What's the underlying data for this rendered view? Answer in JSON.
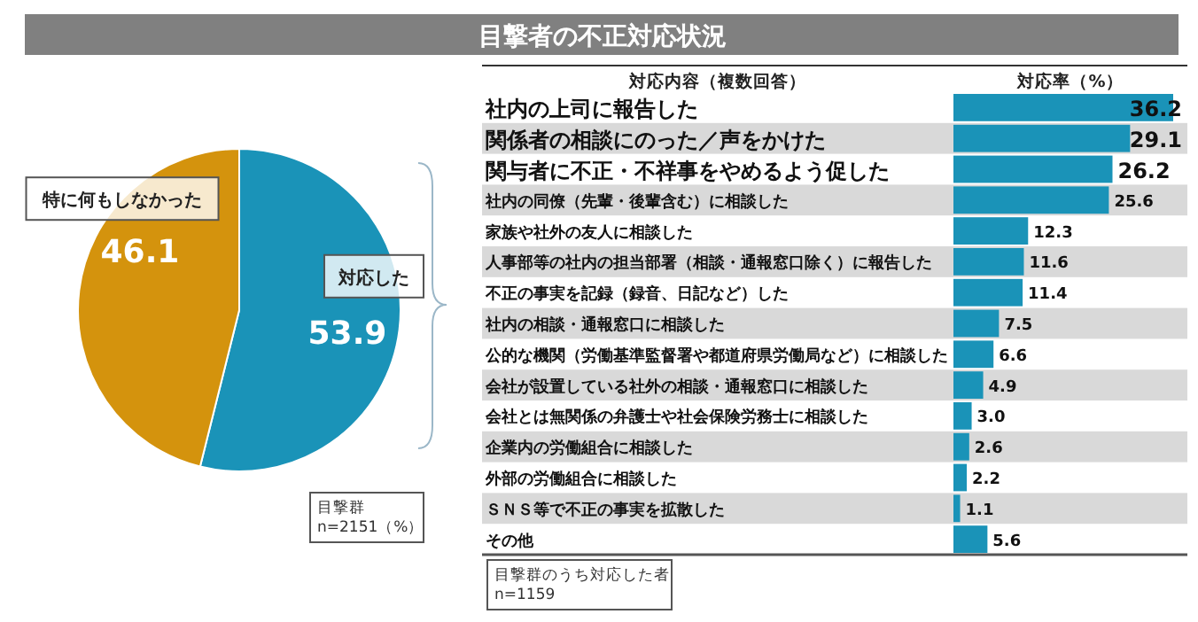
{
  "chart_data": [
    {
      "type": "pie",
      "title": "目撃者の不正対応状況",
      "categories": [
        "対応した",
        "特に何もしなかった"
      ],
      "values": [
        53.9,
        46.1
      ],
      "colors": [
        "#1a93b8",
        "#d4930d"
      ],
      "data_labels": true,
      "annotations": [
        "目撃群\nn=2151（%）"
      ]
    },
    {
      "type": "bar",
      "orientation": "horizontal",
      "ylabel": "対応内容（複数回答）",
      "xlabel": "対応率（%）",
      "value_labels": [
        "36.2",
        "29.1",
        "26.2",
        "25.6",
        "12.3",
        "11.6",
        "11.4",
        "7.5",
        "6.6",
        "4.9",
        "3.0",
        "2.6",
        "2.2",
        "1.1",
        "5.6"
      ],
      "categories": [
        "社内の上司に報告した",
        "関係者の相談にのった／声をかけた",
        "関与者に不正・不祥事をやめるよう促した",
        "社内の同僚（先輩・後輩含む）に相談した",
        "家族や社外の友人に相談した",
        "人事部等の社内の担当部署（相談・通報窓口除く）に報告した",
        "不正の事実を記録（録音、日記など）した",
        "社内の相談・通報窓口に相談した",
        "公的な機関（労働基準監督署や都道府県労働局など）に相談した",
        "会社が設置している社外の相談・通報窓口に相談した",
        "会社とは無関係の弁護士や社会保険労務士に相談した",
        "企業内の労働組合に相談した",
        "外部の労働組合に相談した",
        "ＳＮＳ等で不正の事実を拡散した",
        "その他"
      ],
      "values": [
        36.2,
        29.1,
        26.2,
        25.6,
        12.3,
        11.6,
        11.4,
        7.5,
        6.6,
        4.9,
        3.0,
        2.6,
        2.2,
        1.1,
        5.6
      ],
      "color": "#1a93b8",
      "annotations": [
        "目撃群のうち対応した者\nn=1159"
      ]
    }
  ]
}
